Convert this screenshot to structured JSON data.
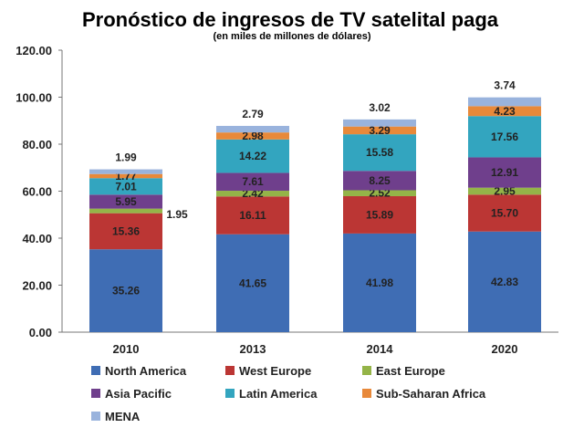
{
  "chart_data": {
    "type": "bar",
    "stacked": true,
    "title": "Pronóstico de ingresos de TV satelital paga",
    "subtitle": "(en miles de millones de dólares)",
    "xlabel": "",
    "ylabel": "",
    "ylim": [
      0,
      120
    ],
    "yticks": [
      "0.00",
      "20.00",
      "40.00",
      "60.00",
      "80.00",
      "100.00",
      "120.00"
    ],
    "categories": [
      "2010",
      "2013",
      "2014",
      "2020"
    ],
    "series": [
      {
        "name": "North America",
        "color": "#3f6db4",
        "values": [
          35.26,
          41.65,
          41.98,
          42.83
        ],
        "labels": [
          "35.26",
          "41.65",
          "41.98",
          "42.83"
        ]
      },
      {
        "name": "West Europe",
        "color": "#bb3634",
        "values": [
          15.36,
          16.11,
          15.89,
          15.7
        ],
        "labels": [
          "15.36",
          "16.11",
          "15.89",
          "15.70"
        ]
      },
      {
        "name": "East Europe",
        "color": "#94b448",
        "values": [
          1.95,
          2.42,
          2.52,
          2.95
        ],
        "labels": [
          "1.95",
          "2.42",
          "2.52",
          "2.95"
        ]
      },
      {
        "name": "Asia Pacific",
        "color": "#6f3f8c",
        "values": [
          5.95,
          7.61,
          8.25,
          12.91
        ],
        "labels": [
          "5.95",
          "7.61",
          "8.25",
          "12.91"
        ]
      },
      {
        "name": "Latin America",
        "color": "#33a5bf",
        "values": [
          7.01,
          14.22,
          15.58,
          17.56
        ],
        "labels": [
          "7.01",
          "14.22",
          "15.58",
          "17.56"
        ]
      },
      {
        "name": "Sub-Saharan Africa",
        "color": "#e8893a",
        "values": [
          1.77,
          2.98,
          3.29,
          4.23
        ],
        "labels": [
          "1.77",
          "2.98",
          "3.29",
          "4.23"
        ]
      },
      {
        "name": "MENA",
        "color": "#99b3dd",
        "values": [
          1.99,
          2.79,
          3.02,
          3.74
        ],
        "labels": [
          "1.99",
          "2.79",
          "3.02",
          "3.74"
        ]
      }
    ],
    "legend_position": "bottom",
    "grid": false
  }
}
